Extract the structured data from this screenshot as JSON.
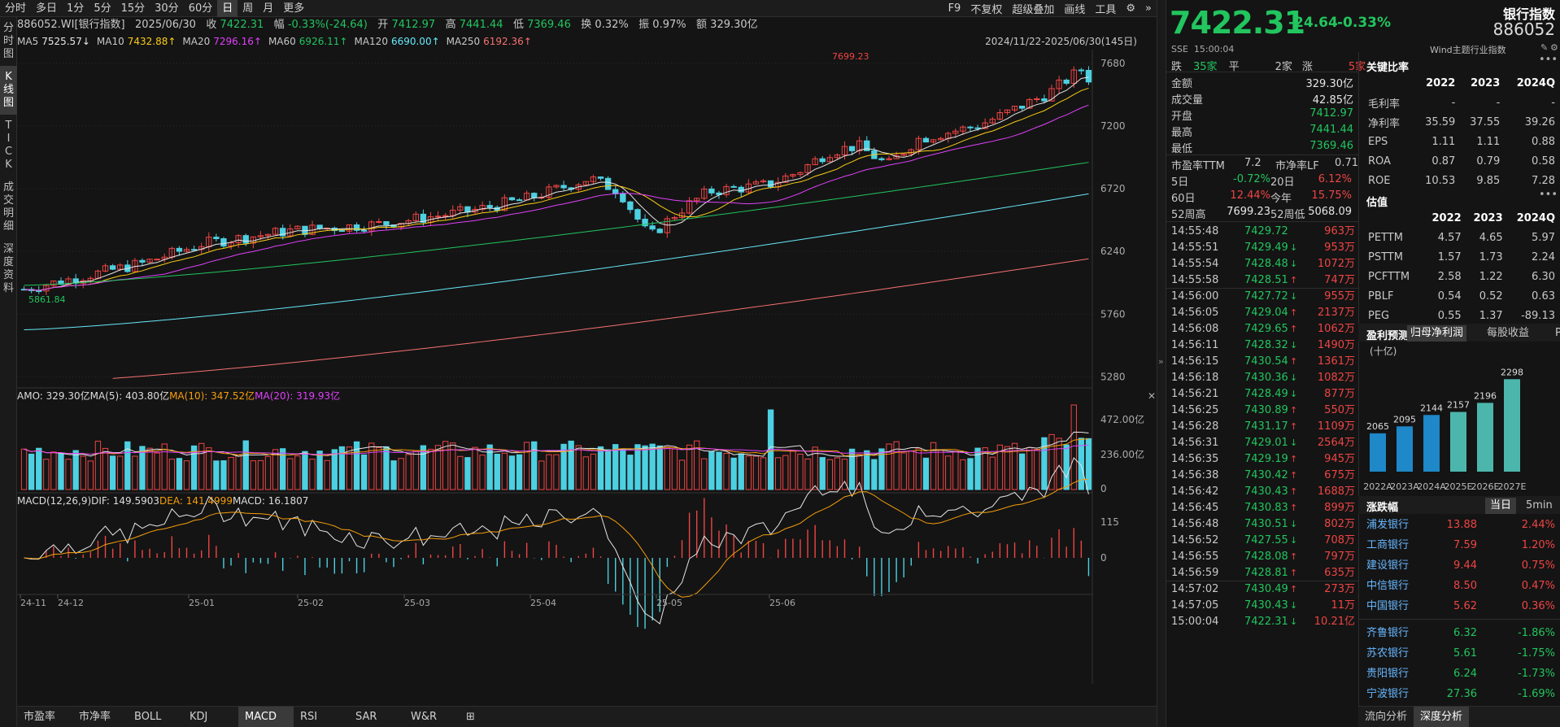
{
  "toolbar": {
    "timeframes": [
      "分时",
      "多日",
      "1分",
      "5分",
      "15分",
      "30分",
      "60分",
      "日",
      "周",
      "月",
      "更多"
    ],
    "active": "日",
    "right": [
      "F9",
      "不复权",
      "超级叠加",
      "画线",
      "工具",
      "⚙",
      "»"
    ]
  },
  "leftnav": [
    "分时图",
    "K线图",
    "TICK",
    "成交明细",
    "深度资料"
  ],
  "info": {
    "code": "886052.WI[银行指数]",
    "date": "2025/06/30",
    "close_label": "收",
    "close": "7422.31",
    "change_label": "幅",
    "change": "-0.33%(-24.64)",
    "open_label": "开",
    "open": "7412.97",
    "high_label": "高",
    "high": "7441.44",
    "low_label": "低",
    "low": "7369.46",
    "turnover_label": "换",
    "turnover": "0.32%",
    "amp_label": "振",
    "amp": "0.97%",
    "amount_label": "额",
    "amount": "329.30亿"
  },
  "ma": [
    {
      "name": "MA5",
      "value": "7525.57↓",
      "color": "#e6e6e6"
    },
    {
      "name": "MA10",
      "value": "7432.88↑",
      "color": "#facc15"
    },
    {
      "name": "MA20",
      "value": "7296.16↑",
      "color": "#e040fb"
    },
    {
      "name": "MA60",
      "value": "6926.11↑",
      "color": "#22c55e"
    },
    {
      "name": "MA120",
      "value": "6690.00↑",
      "color": "#67e8f9"
    },
    {
      "name": "MA250",
      "value": "6192.36↑",
      "color": "#f87171"
    }
  ],
  "range": "2024/11/22-2025/06/30(145日)",
  "chart_data": {
    "type": "line",
    "price_axis": [
      "7680",
      "7200",
      "6720",
      "6240",
      "5760",
      "5280"
    ],
    "max_label": "7699.23",
    "min_label": "5861.84",
    "amo": {
      "label": "AMO: 329.30亿",
      "ma5": "MA(5): 403.80亿",
      "ma10": "MA(10): 347.52亿",
      "ma20": "MA(20): 319.93亿",
      "axis": [
        "472.00亿",
        "236.00亿",
        "0"
      ]
    },
    "macd": {
      "label": "MACD(12,26,9)",
      "dif": "DIF: 149.5903",
      "dea": "DEA: 141.4999",
      "macd": "MACD: 16.1807",
      "axis": [
        "115",
        "0"
      ]
    },
    "x_labels": [
      "24-11",
      "24-12",
      "25-01",
      "25-02",
      "25-03",
      "25-04",
      "25-05",
      "25-06"
    ]
  },
  "bottomtabs": [
    "市盈率",
    "市净率",
    "BOLL",
    "KDJ",
    "MACD",
    "RSI",
    "SAR",
    "W&R",
    "⊞"
  ],
  "right": {
    "price": "7422.31",
    "chg": "-24.64",
    "pct": "-0.33%",
    "name": "银行指数",
    "code": "886052",
    "exch": "SSE",
    "time": "15:00:04",
    "source": "Wind主题行业指数",
    "breadth": {
      "down_label": "跌",
      "down": "35家",
      "flat_label": "平",
      "flat": "2家",
      "up_label": "涨",
      "up": "5家"
    },
    "stats": [
      [
        "金额",
        "329.30亿"
      ],
      [
        "成交量",
        "42.85亿"
      ],
      [
        "开盘",
        "7412.97"
      ],
      [
        "最高",
        "7441.44"
      ],
      [
        "最低",
        "7369.46"
      ]
    ],
    "pe": {
      "pe_label": "市盈率TTM",
      "pe": "7.2",
      "pb_label": "市净率LF",
      "pb": "0.71"
    },
    "perf": [
      [
        "5日",
        "-0.72%",
        "20日",
        "6.12%"
      ],
      [
        "60日",
        "12.44%",
        "今年",
        "15.75%"
      ],
      [
        "52周高",
        "7699.23",
        "52周低",
        "5068.09"
      ]
    ],
    "ticks": [
      [
        "14:55:48",
        "7429.72",
        "",
        "963万"
      ],
      [
        "14:55:51",
        "7429.49",
        "↓",
        "953万"
      ],
      [
        "14:55:54",
        "7428.48",
        "↓",
        "1072万"
      ],
      [
        "14:55:58",
        "7428.51",
        "↑",
        "747万"
      ],
      [
        "14:56:00",
        "7427.72",
        "↓",
        "955万"
      ],
      [
        "14:56:05",
        "7429.04",
        "↑",
        "2137万"
      ],
      [
        "14:56:08",
        "7429.65",
        "↑",
        "1062万"
      ],
      [
        "14:56:11",
        "7428.32",
        "↓",
        "1490万"
      ],
      [
        "14:56:15",
        "7430.54",
        "↑",
        "1361万"
      ],
      [
        "14:56:18",
        "7430.36",
        "↓",
        "1082万"
      ],
      [
        "14:56:21",
        "7428.49",
        "↓",
        "877万"
      ],
      [
        "14:56:25",
        "7430.89",
        "↑",
        "550万"
      ],
      [
        "14:56:28",
        "7431.17",
        "↑",
        "1109万"
      ],
      [
        "14:56:31",
        "7429.01",
        "↓",
        "2564万"
      ],
      [
        "14:56:35",
        "7429.19",
        "↑",
        "945万"
      ],
      [
        "14:56:38",
        "7430.42",
        "↑",
        "675万"
      ],
      [
        "14:56:42",
        "7430.43",
        "↑",
        "1688万"
      ],
      [
        "14:56:45",
        "7430.83",
        "↑",
        "899万"
      ],
      [
        "14:56:48",
        "7430.51",
        "↓",
        "802万"
      ],
      [
        "14:56:52",
        "7427.55",
        "↓",
        "708万"
      ],
      [
        "14:56:55",
        "7428.08",
        "↑",
        "797万"
      ],
      [
        "14:56:59",
        "7428.81",
        "↑",
        "635万"
      ],
      [
        "14:57:02",
        "7430.49",
        "↑",
        "273万"
      ],
      [
        "14:57:05",
        "7430.43",
        "↓",
        "11万"
      ],
      [
        "15:00:04",
        "7422.31",
        "↓",
        "10.21亿"
      ]
    ],
    "key_ratio": {
      "title": "关键比率",
      "years": [
        "2022",
        "2023",
        "2024Q"
      ],
      "rows": [
        [
          "毛利率",
          "-",
          "-",
          "-"
        ],
        [
          "净利率",
          "35.59",
          "37.55",
          "39.26"
        ],
        [
          "EPS",
          "1.11",
          "1.11",
          "0.88"
        ],
        [
          "ROA",
          "0.87",
          "0.79",
          "0.58"
        ],
        [
          "ROE",
          "10.53",
          "9.85",
          "7.28"
        ]
      ]
    },
    "valuation": {
      "title": "估值",
      "years": [
        "2022",
        "2023",
        "2024Q"
      ],
      "rows": [
        [
          "PETTM",
          "4.57",
          "4.65",
          "5.97"
        ],
        [
          "PSTTM",
          "1.57",
          "1.73",
          "2.24"
        ],
        [
          "PCFTTM",
          "2.58",
          "1.22",
          "6.30"
        ],
        [
          "PBLF",
          "0.54",
          "0.52",
          "0.63"
        ],
        [
          "PEG",
          "0.55",
          "1.37",
          "-89.13"
        ]
      ]
    },
    "forecast": {
      "title": "盈利预测",
      "tabs": [
        "归母净利润",
        "每股收益",
        "PE"
      ],
      "unit": "(十亿)",
      "bars": [
        {
          "label": "2022A",
          "value": 2065
        },
        {
          "label": "2023A",
          "value": 2095
        },
        {
          "label": "2024A",
          "value": 2144
        },
        {
          "label": "2025E",
          "value": 2157
        },
        {
          "label": "2026E",
          "value": 2196
        },
        {
          "label": "2027E",
          "value": 2298
        }
      ]
    },
    "movers": {
      "title": "涨跌幅",
      "tabs": [
        "当日",
        "5min"
      ],
      "rows": [
        [
          "浦发银行",
          "13.88",
          "2.44%"
        ],
        [
          "工商银行",
          "7.59",
          "1.20%"
        ],
        [
          "建设银行",
          "9.44",
          "0.75%"
        ],
        [
          "中信银行",
          "8.50",
          "0.47%"
        ],
        [
          "中国银行",
          "5.62",
          "0.36%"
        ],
        [
          "齐鲁银行",
          "6.32",
          "-1.86%"
        ],
        [
          "苏农银行",
          "5.61",
          "-1.75%"
        ],
        [
          "贵阳银行",
          "6.24",
          "-1.73%"
        ],
        [
          "宁波银行",
          "27.36",
          "-1.69%"
        ]
      ]
    },
    "bottom": [
      "流向分析",
      "深度分析"
    ]
  }
}
